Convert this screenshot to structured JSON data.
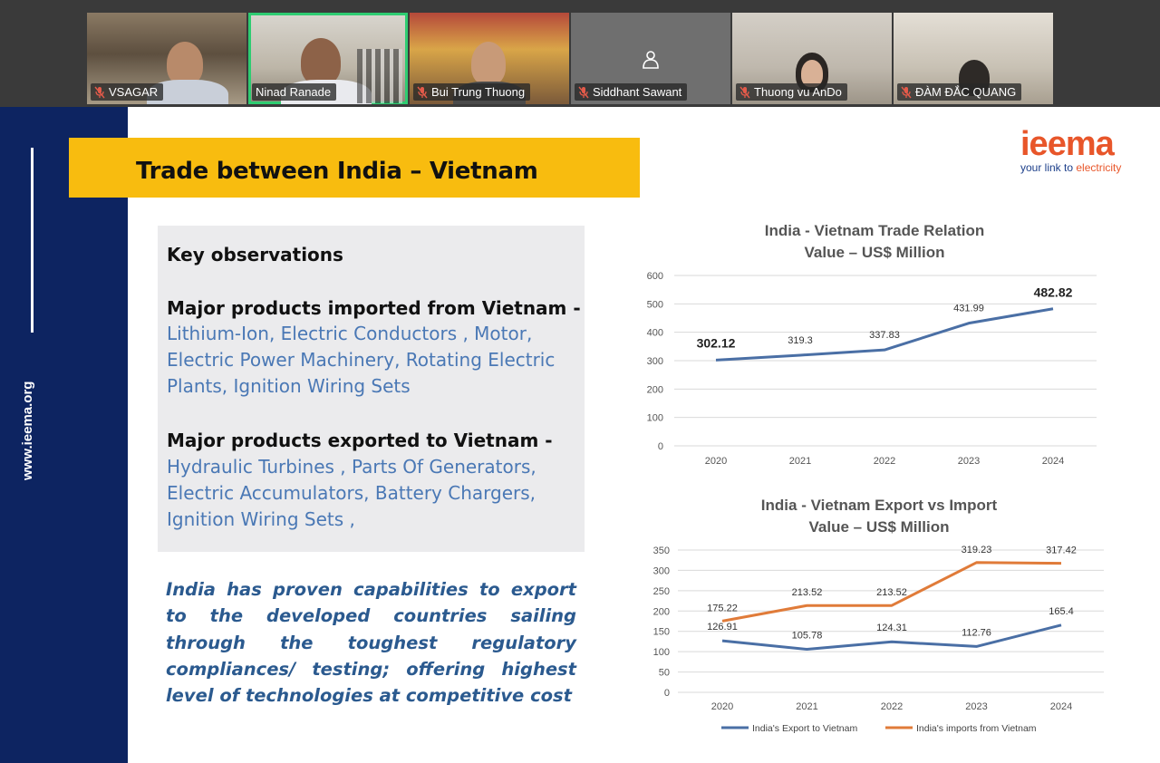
{
  "participants": [
    {
      "name": "VSAGAR",
      "muted": true
    },
    {
      "name": "Ninad Ranade",
      "muted": false,
      "active": true
    },
    {
      "name": "Bui Trung Thuong",
      "muted": true
    },
    {
      "name": "Siddhant Sawant",
      "muted": true
    },
    {
      "name": "Thuong vu AnDo",
      "muted": true
    },
    {
      "name": "ĐÀM ĐẮC QUANG",
      "muted": true
    }
  ],
  "slide": {
    "sidebar_text": "www.ieema.org",
    "title": "Trade between India – Vietnam",
    "logo": {
      "brand": "ieema",
      "tagline_prefix": "your link to ",
      "tagline_accent": "electricity"
    },
    "observations": {
      "heading": "Key observations",
      "imports_heading": "Major products imported from Vietnam -",
      "imports_list": "Lithium-Ion, Electric Conductors , Motor, Electric Power Machinery, Rotating Electric Plants, Ignition Wiring Sets",
      "exports_heading": "Major products exported to Vietnam -",
      "exports_list": "Hydraulic Turbines , Parts Of Generators, Electric Accumulators, Battery Chargers, Ignition Wiring Sets ,"
    },
    "statement": "India has proven capabilities to export to the developed countries sailing through the toughest regulatory compliances/ testing; offering highest level of technologies at competitive cost"
  },
  "colors": {
    "accent_yellow": "#f8bc0f",
    "sidebar_blue": "#0d2461",
    "list_blue": "#4a78b5",
    "export_line": "#4a6fa5",
    "import_line": "#e07b39"
  },
  "chart_data": [
    {
      "type": "line",
      "title": "India - Vietnam Trade Relation",
      "subtitle": "Value – US$ Million",
      "x": [
        "2020",
        "2021",
        "2022",
        "2023",
        "2024"
      ],
      "series": [
        {
          "values": [
            302.12,
            319.3,
            337.83,
            431.99,
            482.82
          ],
          "color": "#4a6fa5"
        }
      ],
      "data_labels": [
        "302.12",
        "319.3",
        "337.83",
        "431.99",
        "482.82"
      ],
      "ylim": [
        0,
        600
      ],
      "yticks": [
        0,
        100,
        200,
        300,
        400,
        500,
        600
      ],
      "grid": true
    },
    {
      "type": "line",
      "title": "India - Vietnam Export vs Import",
      "subtitle": "Value – US$ Million",
      "x": [
        "2020",
        "2021",
        "2022",
        "2023",
        "2024"
      ],
      "series": [
        {
          "name": "India's Export to Vietnam",
          "values": [
            126.91,
            105.78,
            124.31,
            112.76,
            165.4
          ],
          "color": "#4a6fa5"
        },
        {
          "name": "India's imports from Vietnam",
          "values": [
            175.22,
            213.52,
            213.52,
            319.23,
            317.42
          ],
          "color": "#e07b39"
        }
      ],
      "ylim": [
        0,
        350
      ],
      "yticks": [
        0,
        50,
        100,
        150,
        200,
        250,
        300,
        350
      ],
      "grid": true,
      "legend": "bottom"
    }
  ]
}
